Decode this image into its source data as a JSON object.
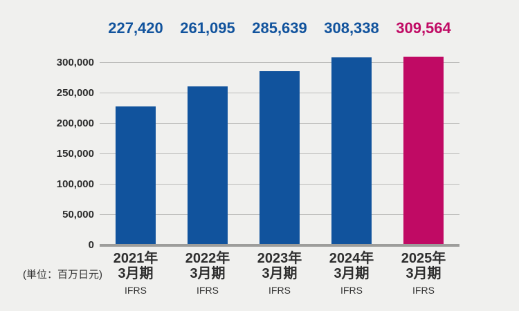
{
  "chart_data": {
    "type": "bar",
    "title": "",
    "unit_note": "(単位：百万日元)",
    "categories": [
      {
        "line1": "2021年",
        "line2": "3月期",
        "standard": "IFRS"
      },
      {
        "line1": "2022年",
        "line2": "3月期",
        "standard": "IFRS"
      },
      {
        "line1": "2023年",
        "line2": "3月期",
        "standard": "IFRS"
      },
      {
        "line1": "2024年",
        "line2": "3月期",
        "standard": "IFRS"
      },
      {
        "line1": "2025年",
        "line2": "3月期",
        "standard": "IFRS"
      }
    ],
    "values": [
      227420,
      261095,
      285639,
      308338,
      309564
    ],
    "value_labels": [
      "227,420",
      "261,095",
      "285,639",
      "308,338",
      "309,564"
    ],
    "bar_colors": [
      "#11539D",
      "#11539D",
      "#11539D",
      "#11539D",
      "#C00A64"
    ],
    "label_colors": [
      "#11539D",
      "#11539D",
      "#11539D",
      "#11539D",
      "#C00A64"
    ],
    "y_ticks": [
      0,
      50000,
      100000,
      150000,
      200000,
      250000,
      300000
    ],
    "y_tick_labels": [
      "0",
      "50,000",
      "100,000",
      "150,000",
      "200,000",
      "250,000",
      "300,000"
    ],
    "ylabel": "",
    "xlabel": "",
    "axis_max_gridline": 300000,
    "grid": true,
    "legend": false,
    "colors": {
      "primary": "#11539D",
      "highlight": "#C00A64",
      "background": "#F0F0EE",
      "gridline": "#BBBBB9",
      "baseline": "#9D9D9B",
      "text": "#2E2E2E"
    }
  }
}
